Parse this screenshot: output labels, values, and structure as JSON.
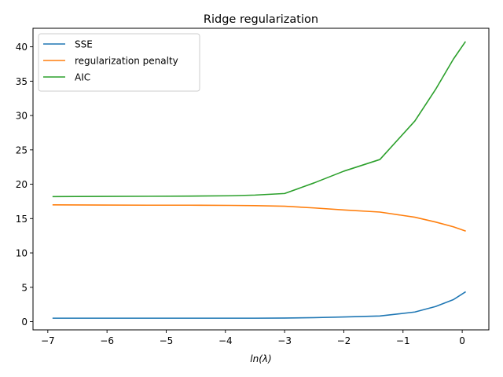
{
  "chart_data": {
    "type": "line",
    "title": "Ridge regularization",
    "xlabel": "ln(λ)",
    "ylabel": "",
    "xlim": [
      -7.25,
      0.45
    ],
    "ylim": [
      -1.2,
      42.7
    ],
    "xticks": [
      -7,
      -6,
      -5,
      -4,
      -3,
      -2,
      -1,
      0
    ],
    "xtick_labels": [
      "−7",
      "−6",
      "−5",
      "−4",
      "−3",
      "−2",
      "−1",
      "0"
    ],
    "yticks": [
      0,
      5,
      10,
      15,
      20,
      25,
      30,
      35,
      40
    ],
    "ytick_labels": [
      "0",
      "5",
      "10",
      "15",
      "20",
      "25",
      "30",
      "35",
      "40"
    ],
    "grid": false,
    "legend_position": "top-left",
    "x": [
      -6.91,
      -5.3,
      -4.61,
      -3.91,
      -3.5,
      -3.0,
      -2.5,
      -2.0,
      -1.39,
      -0.8,
      -0.45,
      -0.15,
      0.05
    ],
    "series": [
      {
        "name": "SSE",
        "color": "#1f77b4",
        "values": [
          0.5,
          0.5,
          0.5,
          0.5,
          0.5,
          0.52,
          0.58,
          0.68,
          0.82,
          1.4,
          2.2,
          3.2,
          4.3
        ]
      },
      {
        "name": "regularization penalty",
        "color": "#ff7f0e",
        "values": [
          17.0,
          16.95,
          16.95,
          16.92,
          16.88,
          16.8,
          16.55,
          16.25,
          15.95,
          15.2,
          14.5,
          13.8,
          13.2
        ]
      },
      {
        "name": "AIC",
        "color": "#2ca02c",
        "values": [
          18.2,
          18.25,
          18.27,
          18.32,
          18.42,
          18.65,
          20.2,
          21.9,
          23.6,
          29.2,
          33.8,
          38.2,
          40.7
        ]
      }
    ]
  }
}
